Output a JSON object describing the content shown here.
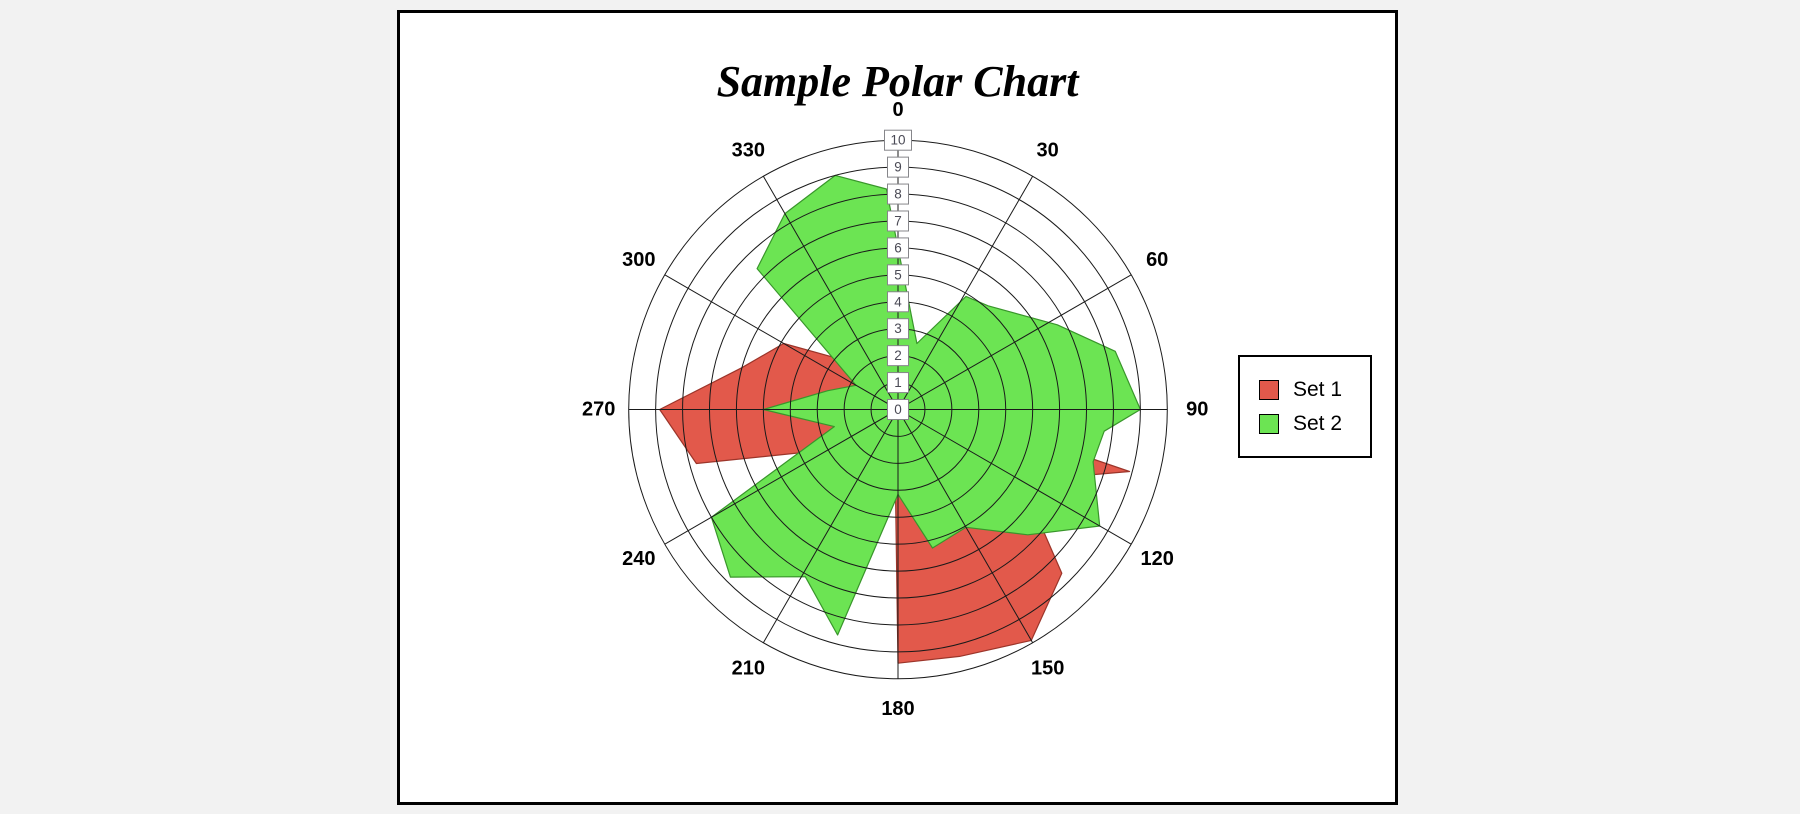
{
  "title": "Sample Polar Chart",
  "legend": {
    "items": [
      {
        "label": "Set 1",
        "color": "#e2594b"
      },
      {
        "label": "Set 2",
        "color": "#6ce453"
      }
    ]
  },
  "chart_data": {
    "type": "polar-area",
    "title": "Sample Polar Chart",
    "angle_unit": "degrees",
    "angle_direction": "clockwise-from-top",
    "angle_tick_labels": [
      "0",
      "30",
      "60",
      "90",
      "120",
      "150",
      "180",
      "210",
      "240",
      "270",
      "300",
      "330"
    ],
    "radial_tick_labels": [
      "0",
      "1",
      "2",
      "3",
      "4",
      "5",
      "6",
      "7",
      "8",
      "9",
      "10"
    ],
    "r_min": 0,
    "r_max": 10,
    "grid": true,
    "legend_position": "right",
    "grid_color": "#1a1a1a",
    "series": [
      {
        "name": "Set 1",
        "fill": "#e2594b",
        "stroke": "#9c352a",
        "points": [
          [
            0,
            2.0
          ],
          [
            15,
            1.2
          ],
          [
            30,
            2.0
          ],
          [
            45,
            1.5
          ],
          [
            60,
            2.0
          ],
          [
            75,
            3.0
          ],
          [
            90,
            1.85
          ],
          [
            105,
            8.9
          ],
          [
            120,
            5.3
          ],
          [
            135,
            8.6
          ],
          [
            150,
            9.9
          ],
          [
            166,
            9.45
          ],
          [
            180,
            9.42
          ],
          [
            195,
            0.5
          ],
          [
            210,
            1.0
          ],
          [
            225,
            1.5
          ],
          [
            240,
            3.0
          ],
          [
            255,
            7.75
          ],
          [
            270,
            8.85
          ],
          [
            285,
            6.0
          ],
          [
            300,
            4.9
          ],
          [
            315,
            2.5
          ],
          [
            330,
            2.0
          ],
          [
            345,
            1.5
          ]
        ]
      },
      {
        "name": "Set 2",
        "fill": "#6ce453",
        "stroke": "#39962b",
        "points": [
          [
            357,
            8.2
          ],
          [
            16,
            2.55
          ],
          [
            31,
            4.9
          ],
          [
            41,
            5.1
          ],
          [
            62,
            6.7
          ],
          [
            75,
            8.35
          ],
          [
            90,
            9.0
          ],
          [
            96,
            7.7
          ],
          [
            105,
            7.5
          ],
          [
            120,
            8.65
          ],
          [
            134,
            6.7
          ],
          [
            150,
            5.05
          ],
          [
            166,
            5.3
          ],
          [
            180,
            3.15
          ],
          [
            195,
            8.67
          ],
          [
            209,
            7.1
          ],
          [
            225,
            8.8
          ],
          [
            240,
            8.0
          ],
          [
            255,
            2.45
          ],
          [
            270,
            5.0
          ],
          [
            285,
            2.7
          ],
          [
            300,
            1.8
          ],
          [
            315,
            7.4
          ],
          [
            330,
            8.4
          ],
          [
            345,
            9.0
          ]
        ]
      }
    ]
  }
}
